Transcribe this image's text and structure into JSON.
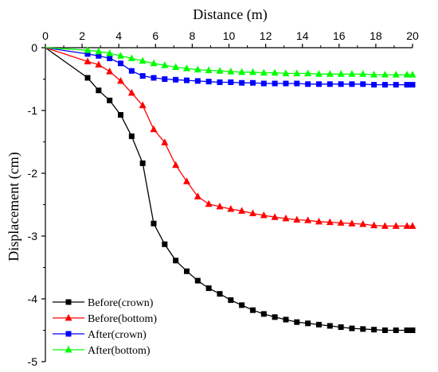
{
  "chart_data": {
    "type": "line",
    "xlabel": "Distance (m)",
    "ylabel": "Displacement (cm)",
    "xlim": [
      0,
      20
    ],
    "ylim": [
      -5,
      0
    ],
    "x_ticks": [
      "0",
      "2",
      "4",
      "6",
      "8",
      "10",
      "12",
      "14",
      "16",
      "18",
      "20"
    ],
    "y_ticks": [
      "0",
      "-1",
      "-2",
      "-3",
      "-4",
      "-5"
    ],
    "x_axis_position": "top",
    "grid": false,
    "legend_position": "bottom-left",
    "series": [
      {
        "name": "Before(crown)",
        "color": "#000000",
        "marker": "square",
        "x": [
          0,
          2.3,
          2.9,
          3.5,
          4.1,
          4.7,
          5.3,
          5.9,
          6.5,
          7.1,
          7.7,
          8.3,
          8.9,
          9.5,
          10.1,
          10.7,
          11.3,
          11.9,
          12.5,
          13.1,
          13.7,
          14.3,
          14.9,
          15.5,
          16.1,
          16.7,
          17.3,
          17.9,
          18.5,
          19.1,
          19.7,
          20
        ],
        "y": [
          0,
          -0.48,
          -0.68,
          -0.84,
          -1.07,
          -1.41,
          -1.84,
          -2.8,
          -3.13,
          -3.39,
          -3.56,
          -3.71,
          -3.83,
          -3.92,
          -4.02,
          -4.1,
          -4.18,
          -4.24,
          -4.29,
          -4.33,
          -4.37,
          -4.39,
          -4.41,
          -4.43,
          -4.45,
          -4.47,
          -4.48,
          -4.49,
          -4.5,
          -4.5,
          -4.5,
          -4.5
        ]
      },
      {
        "name": "Before(bottom)",
        "color": "#ff0000",
        "marker": "triangle",
        "x": [
          0,
          2.3,
          2.9,
          3.5,
          4.1,
          4.7,
          5.3,
          5.9,
          6.5,
          7.1,
          7.7,
          8.3,
          8.9,
          9.5,
          10.1,
          10.7,
          11.3,
          11.9,
          12.5,
          13.1,
          13.7,
          14.3,
          14.9,
          15.5,
          16.1,
          16.7,
          17.3,
          17.9,
          18.5,
          19.1,
          19.7,
          20
        ],
        "y": [
          0,
          -0.22,
          -0.27,
          -0.38,
          -0.53,
          -0.72,
          -0.92,
          -1.3,
          -1.51,
          -1.87,
          -2.13,
          -2.37,
          -2.49,
          -2.53,
          -2.57,
          -2.6,
          -2.64,
          -2.67,
          -2.7,
          -2.72,
          -2.74,
          -2.75,
          -2.77,
          -2.78,
          -2.79,
          -2.8,
          -2.81,
          -2.83,
          -2.84,
          -2.84,
          -2.84,
          -2.84
        ]
      },
      {
        "name": "After(crown)",
        "color": "#0000ff",
        "marker": "square",
        "x": [
          0,
          2.3,
          2.9,
          3.5,
          4.1,
          4.7,
          5.3,
          5.9,
          6.5,
          7.1,
          7.7,
          8.3,
          8.9,
          9.5,
          10.1,
          10.7,
          11.3,
          11.9,
          12.5,
          13.1,
          13.7,
          14.3,
          14.9,
          15.5,
          16.1,
          16.7,
          17.3,
          17.9,
          18.5,
          19.1,
          19.7,
          20
        ],
        "y": [
          0,
          -0.1,
          -0.13,
          -0.17,
          -0.25,
          -0.37,
          -0.45,
          -0.48,
          -0.5,
          -0.51,
          -0.52,
          -0.53,
          -0.54,
          -0.55,
          -0.55,
          -0.56,
          -0.56,
          -0.57,
          -0.57,
          -0.57,
          -0.57,
          -0.58,
          -0.58,
          -0.58,
          -0.58,
          -0.58,
          -0.58,
          -0.59,
          -0.59,
          -0.59,
          -0.59,
          -0.59
        ]
      },
      {
        "name": "After(bottom)",
        "color": "#00ff00",
        "marker": "triangle",
        "x": [
          0,
          2.3,
          2.9,
          3.5,
          4.1,
          4.7,
          5.3,
          5.9,
          6.5,
          7.1,
          7.7,
          8.3,
          8.9,
          9.5,
          10.1,
          10.7,
          11.3,
          11.9,
          12.5,
          13.1,
          13.7,
          14.3,
          14.9,
          15.5,
          16.1,
          16.7,
          17.3,
          17.9,
          18.5,
          19.1,
          19.7,
          20
        ],
        "y": [
          0,
          -0.04,
          -0.06,
          -0.09,
          -0.13,
          -0.17,
          -0.21,
          -0.25,
          -0.28,
          -0.31,
          -0.33,
          -0.35,
          -0.36,
          -0.37,
          -0.38,
          -0.39,
          -0.39,
          -0.4,
          -0.4,
          -0.41,
          -0.41,
          -0.41,
          -0.42,
          -0.42,
          -0.42,
          -0.42,
          -0.42,
          -0.43,
          -0.43,
          -0.43,
          -0.43,
          -0.43
        ]
      }
    ]
  }
}
